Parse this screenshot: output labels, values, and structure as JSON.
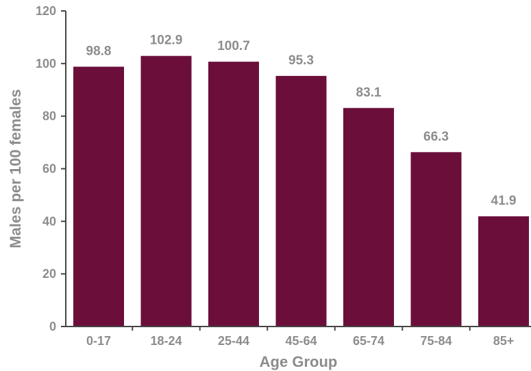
{
  "chart_data": {
    "type": "bar",
    "title": "",
    "xlabel": "Age Group",
    "ylabel": "Males per 100 females",
    "categories": [
      "0-17",
      "18-24",
      "25-44",
      "45-64",
      "65-74",
      "75-84",
      "85+"
    ],
    "values": [
      98.8,
      102.9,
      100.7,
      95.3,
      83.1,
      66.3,
      41.9
    ],
    "data_labels": [
      "98.8",
      "102.9",
      "100.7",
      "95.3",
      "83.1",
      "66.3",
      "41.9"
    ],
    "ylim": [
      0,
      120
    ],
    "yticks": [
      0,
      20,
      40,
      60,
      80,
      100,
      120
    ],
    "ytick_labels": [
      "0",
      "20",
      "40",
      "60",
      "80",
      "100",
      "120"
    ],
    "grid": false,
    "legend": "none",
    "colors": {
      "bar": "#6b0f3a",
      "axis": "#444444",
      "text": "#8c8c8c"
    }
  }
}
